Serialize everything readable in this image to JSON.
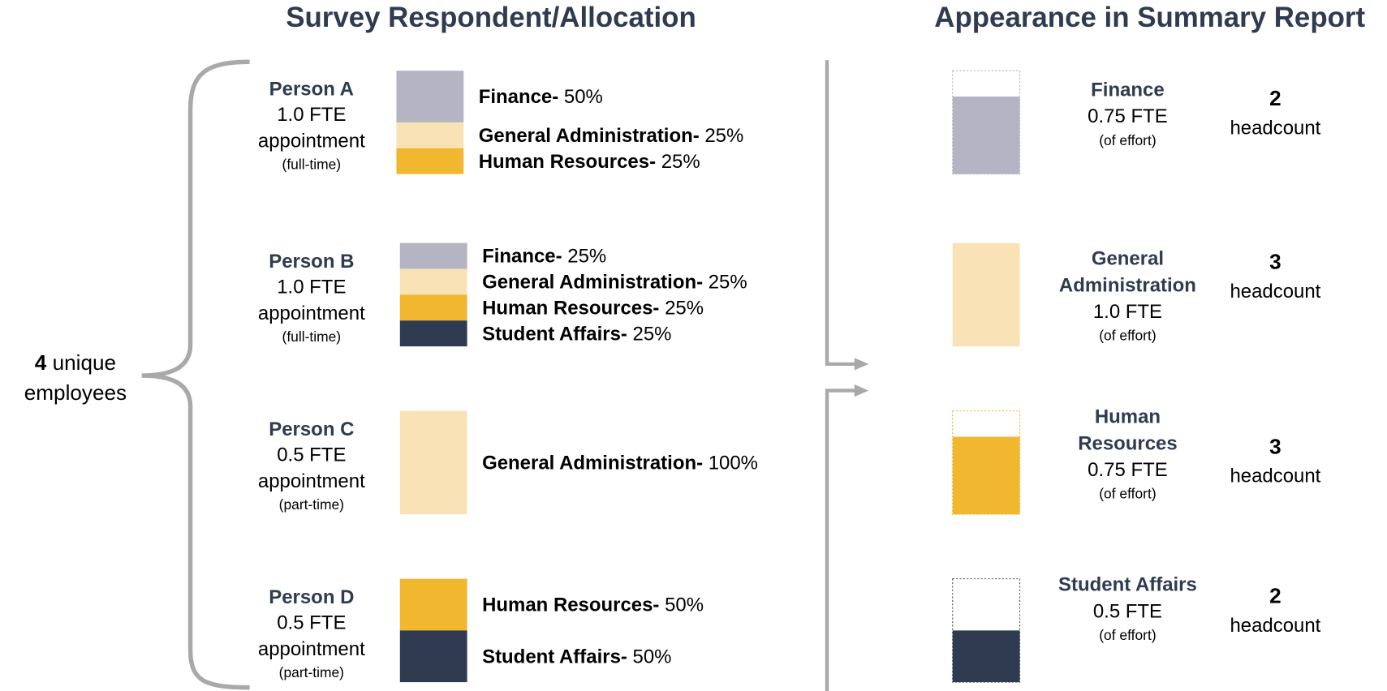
{
  "left_title": "Survey Respondent/Allocation",
  "right_title": "Appearance in Summary Report",
  "brace_label": {
    "count": 4,
    "text": "unique",
    "line2": "employees"
  },
  "persons": [
    {
      "name": "Person A",
      "fte": "1.0 FTE",
      "appointment": "appointment",
      "type": "(full-time)",
      "allocations": [
        {
          "department": "Finance-",
          "percent": {
            "value": 50,
            "label": "50%"
          },
          "color": "#b4b4c4"
        },
        {
          "department": "General Administration-",
          "percent": {
            "value": 25,
            "label": "25%"
          },
          "color": "#f9e3b6"
        },
        {
          "department": "Human Resources-",
          "percent": {
            "value": 25,
            "label": "25%"
          },
          "color": "#f0b72f"
        }
      ]
    },
    {
      "name": "Person B",
      "fte": "1.0 FTE",
      "appointment": "appointment",
      "type": "(full-time)",
      "allocations": [
        {
          "department": "Finance-",
          "percent": {
            "value": 25,
            "label": "25%"
          },
          "color": "#b4b4c4"
        },
        {
          "department": "General Administration-",
          "percent": {
            "value": 25,
            "label": "25%"
          },
          "color": "#f9e3b6"
        },
        {
          "department": "Human Resources-",
          "percent": {
            "value": 25,
            "label": "25%"
          },
          "color": "#f0b72f"
        },
        {
          "department": "Student Affairs-",
          "percent": {
            "value": 25,
            "label": "25%"
          },
          "color": "#2e3b50"
        }
      ]
    },
    {
      "name": "Person C",
      "fte": "0.5 FTE",
      "appointment": "appointment",
      "type": "(part-time)",
      "allocations": [
        {
          "department": "General Administration-",
          "percent": {
            "value": 100,
            "label": "100%"
          },
          "color": "#f9e3b6"
        }
      ]
    },
    {
      "name": "Person D",
      "fte": "0.5 FTE",
      "appointment": "appointment",
      "type": "(part-time)",
      "allocations": [
        {
          "department": "Human Resources-",
          "percent": {
            "value": 50,
            "label": "50%"
          },
          "color": "#f0b72f"
        },
        {
          "department": "Student Affairs-",
          "percent": {
            "value": 50,
            "label": "50%"
          },
          "color": "#2e3b50"
        }
      ]
    }
  ],
  "summary": [
    {
      "name_lines": [
        "Finance"
      ],
      "fte": {
        "value": 0.75,
        "label": "0.75 FTE"
      },
      "note": "(of effort)",
      "headcount": 2,
      "headcount_label": "headcount",
      "color": "#b4b4c4"
    },
    {
      "name_lines": [
        "General",
        "Administration"
      ],
      "fte": {
        "value": 1.0,
        "label": "1.0 FTE"
      },
      "note": "(of effort)",
      "headcount": 3,
      "headcount_label": "headcount",
      "color": "#f9e3b6"
    },
    {
      "name_lines": [
        "Human",
        "Resources"
      ],
      "fte": {
        "value": 0.75,
        "label": "0.75 FTE"
      },
      "note": "(of effort)",
      "headcount": 3,
      "headcount_label": "headcount",
      "color": "#f0b72f"
    },
    {
      "name_lines": [
        "Student Affairs"
      ],
      "fte": {
        "value": 0.5,
        "label": "0.5 FTE"
      },
      "note": "(of effort)",
      "headcount": 2,
      "headcount_label": "headcount",
      "color": "#2e3b50"
    }
  ]
}
